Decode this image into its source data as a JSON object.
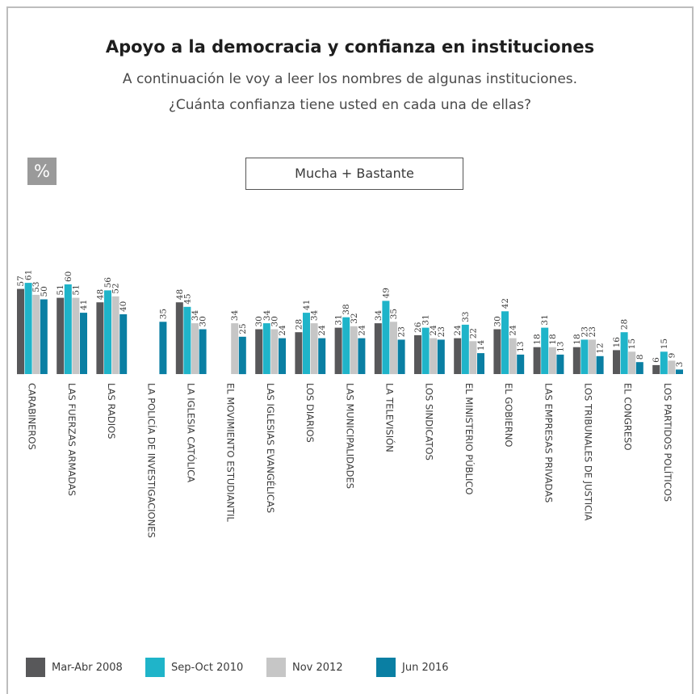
{
  "header": {
    "title": "Apoyo a la democracia y confianza en instituciones",
    "subtitle_line1": "A continuación le voy a leer los nombres de algunas instituciones.",
    "subtitle_line2": "¿Cuánta confianza tiene usted en cada una de ellas?",
    "unit_badge": "%",
    "measure_label": "Mucha + Bastante"
  },
  "chart_data": {
    "type": "bar",
    "title": "Apoyo a la democracia y confianza en instituciones",
    "ylabel": "%",
    "ylim": [
      0,
      65
    ],
    "grid": false,
    "legend_position": "bottom-left",
    "categories": [
      "CARABINEROS",
      "LAS FUERZAS ARMADAS",
      "LAS RADIOS",
      "LA POLICÍA DE INVESTIGACIONES",
      "LA IGLESIA CATÓLICA",
      "EL MOVIMIENTO ESTUDIANTIL",
      "LAS IGLESIAS EVANGÉLICAS",
      "LOS DIARIOS",
      "LAS MUNICIPALIDADES",
      "LA TELEVISIÓN",
      "LOS SINDICATOS",
      "EL MINISTERIO PÚBLICO",
      "EL GOBIERNO",
      "LAS EMPRESAS PRIVADAS",
      "LOS TRIBUNALES DE JUSTICIA",
      "EL CONGRESO",
      "LOS PARTIDOS POLÍTICOS"
    ],
    "series": [
      {
        "name": "Mar-Abr 2008",
        "color": "#58585a",
        "values": [
          57,
          51,
          48,
          null,
          48,
          null,
          30,
          28,
          31,
          34,
          26,
          24,
          30,
          18,
          18,
          16,
          6
        ]
      },
      {
        "name": "Sep-Oct 2010",
        "color": "#1fb4c9",
        "values": [
          61,
          60,
          56,
          null,
          45,
          null,
          34,
          41,
          38,
          49,
          31,
          33,
          42,
          31,
          23,
          28,
          15
        ]
      },
      {
        "name": "Nov 2012",
        "color": "#c6c6c6",
        "values": [
          53,
          51,
          52,
          null,
          34,
          34,
          30,
          34,
          32,
          35,
          24,
          22,
          24,
          18,
          23,
          15,
          9
        ]
      },
      {
        "name": "Jun 2016",
        "color": "#0a7fa3",
        "values": [
          50,
          41,
          40,
          35,
          30,
          25,
          24,
          24,
          24,
          23,
          23,
          14,
          13,
          13,
          12,
          8,
          3
        ]
      }
    ]
  }
}
